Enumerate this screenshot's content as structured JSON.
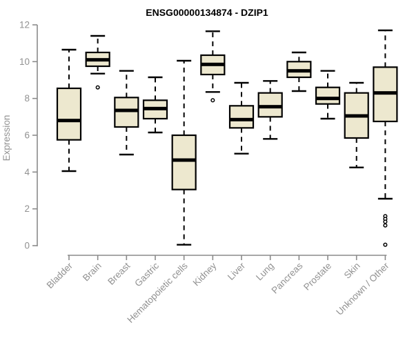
{
  "title": "ENSG00000134874 - DZIP1",
  "colors": {
    "background": "#ffffff",
    "box_fill": "#EDE8CF",
    "box_stroke": "#000000",
    "median_color": "#000000",
    "whisker_color": "#000000",
    "axis_line": "#8a8a8a",
    "axis_text": "#919191",
    "title_color": "#000000"
  },
  "chart_data": {
    "type": "boxplot",
    "title": "ENSG00000134874 - DZIP1",
    "xlabel": "",
    "ylabel": "Expression",
    "ylim": [
      0,
      12
    ],
    "yticks": [
      0,
      2,
      4,
      6,
      8,
      10,
      12
    ],
    "grid": "off",
    "legend": "none",
    "categories": [
      "Bladder",
      "Brain",
      "Breast",
      "Gastric",
      "Hematopoietic cells",
      "Kidney",
      "Liver",
      "Lung",
      "Pancreas",
      "Prostate",
      "Skin",
      "Unknown / Other"
    ],
    "boxes": [
      {
        "label": "Bladder",
        "whisker_low": 4.05,
        "q1": 5.75,
        "median": 6.8,
        "q3": 8.55,
        "whisker_high": 10.65,
        "outliers": []
      },
      {
        "label": "Brain",
        "whisker_low": 9.35,
        "q1": 9.75,
        "median": 10.1,
        "q3": 10.5,
        "whisker_high": 11.4,
        "outliers": [
          8.6
        ]
      },
      {
        "label": "Breast",
        "whisker_low": 4.95,
        "q1": 6.45,
        "median": 7.35,
        "q3": 8.05,
        "whisker_high": 9.5,
        "outliers": []
      },
      {
        "label": "Gastric",
        "whisker_low": 6.15,
        "q1": 6.9,
        "median": 7.45,
        "q3": 7.9,
        "whisker_high": 9.15,
        "outliers": []
      },
      {
        "label": "Hematopoietic cells",
        "whisker_low": 0.05,
        "q1": 3.05,
        "median": 4.65,
        "q3": 6.0,
        "whisker_high": 10.05,
        "outliers": []
      },
      {
        "label": "Kidney",
        "whisker_low": 8.35,
        "q1": 9.3,
        "median": 9.85,
        "q3": 10.35,
        "whisker_high": 11.65,
        "outliers": [
          7.9
        ]
      },
      {
        "label": "Liver",
        "whisker_low": 5.0,
        "q1": 6.4,
        "median": 6.85,
        "q3": 7.6,
        "whisker_high": 8.85,
        "outliers": []
      },
      {
        "label": "Lung",
        "whisker_low": 5.8,
        "q1": 7.0,
        "median": 7.55,
        "q3": 8.3,
        "whisker_high": 8.95,
        "outliers": []
      },
      {
        "label": "Pancreas",
        "whisker_low": 8.4,
        "q1": 9.15,
        "median": 9.5,
        "q3": 10.0,
        "whisker_high": 10.5,
        "outliers": []
      },
      {
        "label": "Prostate",
        "whisker_low": 6.9,
        "q1": 7.7,
        "median": 8.0,
        "q3": 8.6,
        "whisker_high": 9.5,
        "outliers": []
      },
      {
        "label": "Skin",
        "whisker_low": 4.25,
        "q1": 5.85,
        "median": 7.05,
        "q3": 8.3,
        "whisker_high": 8.85,
        "outliers": []
      },
      {
        "label": "Unknown / Other",
        "whisker_low": 2.55,
        "q1": 6.75,
        "median": 8.3,
        "q3": 9.7,
        "whisker_high": 11.7,
        "outliers": [
          1.6,
          1.45,
          1.3,
          1.1,
          0.05
        ]
      }
    ]
  }
}
